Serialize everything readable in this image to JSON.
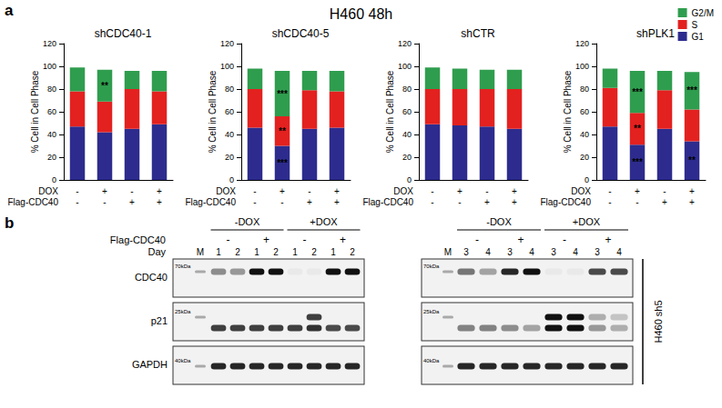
{
  "title": "H460 48h",
  "panel_labels": [
    "a",
    "b"
  ],
  "chart_data": [
    {
      "type": "bar",
      "title": "shCDC40-1",
      "stacked": true,
      "grid": false,
      "categories": [
        null,
        null,
        null,
        null
      ],
      "x_rows": [
        {
          "label": "DOX",
          "values": [
            "-",
            "+",
            "-",
            "+"
          ]
        },
        {
          "label": "Flag-CDC40",
          "values": [
            "-",
            "-",
            "+",
            "+"
          ]
        }
      ],
      "ylabel": "% Cell in Cell Phase",
      "ylim": [
        0,
        120
      ],
      "yticks": [
        0,
        20,
        40,
        60,
        80,
        100,
        120
      ],
      "series": [
        {
          "name": "G1",
          "color": "#2d2c8e",
          "values": [
            47,
            42,
            45,
            49
          ],
          "annotations": [
            null,
            null,
            null,
            null
          ]
        },
        {
          "name": "S",
          "color": "#e3211f",
          "values": [
            31,
            27,
            35,
            29
          ],
          "annotations": [
            null,
            null,
            null,
            null
          ]
        },
        {
          "name": "G2/M",
          "color": "#2f9d4e",
          "values": [
            21,
            28,
            16,
            18
          ],
          "annotations": [
            null,
            "**",
            null,
            null
          ]
        }
      ]
    },
    {
      "type": "bar",
      "title": "shCDC40-5",
      "stacked": true,
      "grid": false,
      "categories": [
        null,
        null,
        null,
        null
      ],
      "x_rows": [
        {
          "label": "DOX",
          "values": [
            "-",
            "+",
            "-",
            "+"
          ]
        },
        {
          "label": "Flag-CDC40",
          "values": [
            "-",
            "-",
            "+",
            "+"
          ]
        }
      ],
      "ylabel": "% Cell in Cell Phase",
      "ylim": [
        0,
        120
      ],
      "yticks": [
        0,
        20,
        40,
        60,
        80,
        100,
        120
      ],
      "series": [
        {
          "name": "G1",
          "color": "#2d2c8e",
          "values": [
            46,
            30,
            45,
            46
          ],
          "annotations": [
            null,
            "***",
            null,
            null
          ]
        },
        {
          "name": "S",
          "color": "#e3211f",
          "values": [
            34,
            26,
            34,
            32
          ],
          "annotations": [
            null,
            "**",
            null,
            null
          ]
        },
        {
          "name": "G2/M",
          "color": "#2f9d4e",
          "values": [
            18,
            40,
            17,
            18
          ],
          "annotations": [
            null,
            "***",
            null,
            null
          ]
        }
      ]
    },
    {
      "type": "bar",
      "title": "shCTR",
      "stacked": true,
      "grid": false,
      "categories": [
        null,
        null,
        null,
        null
      ],
      "x_rows": [
        {
          "label": "DOX",
          "values": [
            "-",
            "+",
            "-",
            "+"
          ]
        },
        {
          "label": "Flag-CDC40",
          "values": [
            "-",
            "-",
            "+",
            "+"
          ]
        }
      ],
      "ylabel": "% Cell in Cell Phase",
      "ylim": [
        0,
        120
      ],
      "yticks": [
        0,
        20,
        40,
        60,
        80,
        100,
        120
      ],
      "series": [
        {
          "name": "G1",
          "color": "#2d2c8e",
          "values": [
            49,
            48,
            47,
            45
          ],
          "annotations": [
            null,
            null,
            null,
            null
          ]
        },
        {
          "name": "S",
          "color": "#e3211f",
          "values": [
            31,
            32,
            33,
            35
          ],
          "annotations": [
            null,
            null,
            null,
            null
          ]
        },
        {
          "name": "G2/M",
          "color": "#2f9d4e",
          "values": [
            19,
            18,
            17,
            17
          ],
          "annotations": [
            null,
            null,
            null,
            null
          ]
        }
      ]
    },
    {
      "type": "bar",
      "title": "shPLK1",
      "stacked": true,
      "grid": false,
      "legend": "top-right",
      "categories": [
        null,
        null,
        null,
        null
      ],
      "x_rows": [
        {
          "label": "DOX",
          "values": [
            "-",
            "+",
            "-",
            "+"
          ]
        },
        {
          "label": "Flag-CDC40",
          "values": [
            "-",
            "-",
            "+",
            "+"
          ]
        }
      ],
      "ylabel": "% Cell in Cell Phase",
      "ylim": [
        0,
        120
      ],
      "yticks": [
        0,
        20,
        40,
        60,
        80,
        100,
        120
      ],
      "series": [
        {
          "name": "G1",
          "color": "#2d2c8e",
          "values": [
            47,
            31,
            45,
            34
          ],
          "annotations": [
            null,
            "***",
            null,
            "**"
          ]
        },
        {
          "name": "S",
          "color": "#e3211f",
          "values": [
            34,
            28,
            34,
            28
          ],
          "annotations": [
            null,
            "**",
            null,
            null
          ]
        },
        {
          "name": "G2/M",
          "color": "#2f9d4e",
          "values": [
            17,
            37,
            17,
            33
          ],
          "annotations": [
            null,
            "***",
            null,
            "***"
          ]
        }
      ]
    }
  ],
  "blot": {
    "header_labels": [
      "Flag-CDC40",
      "Day"
    ],
    "row_names": [
      "CDC40",
      "p21",
      "GAPDH"
    ],
    "cell_line": "H460 sh5",
    "panels": [
      {
        "groups": [
          "-DOX",
          "+DOX"
        ],
        "flag": [
          "-",
          "+",
          "-",
          "+"
        ],
        "days": [
          "1",
          "2",
          "1",
          "2",
          "1",
          "2",
          "1",
          "2"
        ],
        "marker": "M",
        "kda": [
          "70kDa",
          "25kDa",
          "40kDa"
        ],
        "bands": [
          [
            0.45,
            0.4,
            1,
            1,
            0.04,
            0.04,
            1,
            1
          ],
          [
            0.8,
            0.8,
            0.8,
            0.8,
            0.8,
            0.85,
            0.75,
            0.75
          ],
          [
            0.9,
            0.9,
            0.9,
            0.9,
            0.9,
            0.9,
            0.9,
            0.9
          ]
        ],
        "upper_bands": [
          null,
          [
            0,
            0,
            0,
            0,
            0,
            0.8,
            0,
            0
          ],
          null
        ]
      },
      {
        "groups": [
          "-DOX",
          "+DOX"
        ],
        "flag": [
          "-",
          "+",
          "-",
          "+"
        ],
        "days": [
          "3",
          "4",
          "3",
          "4",
          "3",
          "4",
          "3",
          "4"
        ],
        "marker": "M",
        "kda": [
          "70kDa",
          "25kDa",
          "40kDa"
        ],
        "bands": [
          [
            0.55,
            0.35,
            0.9,
            1,
            0.04,
            0.04,
            0.75,
            0.75
          ],
          [
            0.5,
            0.5,
            0.45,
            0.35,
            1,
            1,
            0.4,
            0.3
          ],
          [
            0.9,
            0.9,
            0.9,
            0.9,
            0.9,
            0.9,
            0.9,
            0.9
          ]
        ],
        "upper_bands": [
          null,
          [
            0,
            0,
            0,
            0,
            1,
            1,
            0.3,
            0.2
          ],
          null
        ]
      }
    ]
  }
}
